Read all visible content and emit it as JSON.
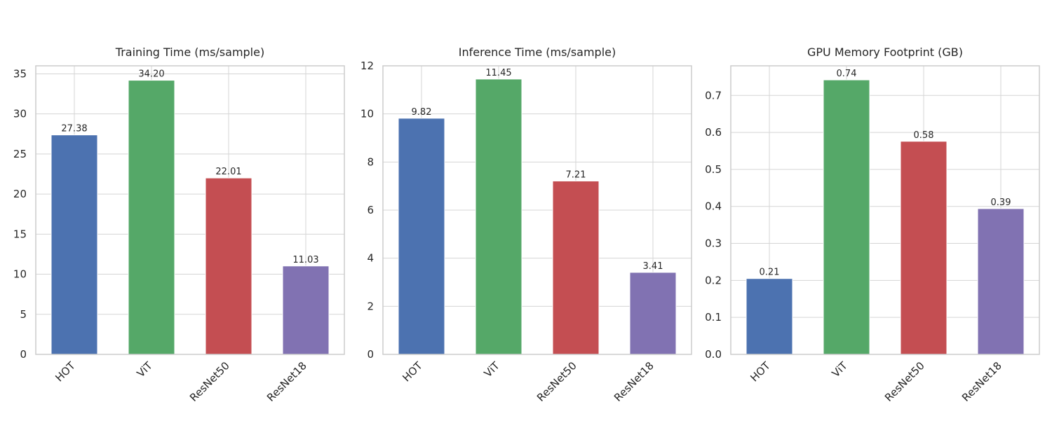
{
  "chart_data": [
    {
      "type": "bar",
      "title": "Training Time (ms/sample)",
      "xlabel": "",
      "ylabel": "",
      "categories": [
        "HOT",
        "ViT",
        "ResNet50",
        "ResNet18"
      ],
      "values": [
        27.38,
        34.2,
        22.01,
        11.03
      ],
      "value_labels": [
        "27.38",
        "34.20",
        "22.01",
        "11.03"
      ],
      "ylim": [
        0,
        36
      ],
      "yticks": [
        0,
        5,
        10,
        15,
        20,
        25,
        30,
        35
      ],
      "ytick_labels": [
        "0",
        "5",
        "10",
        "15",
        "20",
        "25",
        "30",
        "35"
      ],
      "grid": true,
      "legend": "none"
    },
    {
      "type": "bar",
      "title": "Inference Time (ms/sample)",
      "xlabel": "",
      "ylabel": "",
      "categories": [
        "HOT",
        "ViT",
        "ResNet50",
        "ResNet18"
      ],
      "values": [
        9.82,
        11.45,
        7.21,
        3.41
      ],
      "value_labels": [
        "9.82",
        "11.45",
        "7.21",
        "3.41"
      ],
      "ylim": [
        0,
        12
      ],
      "yticks": [
        0,
        2,
        4,
        6,
        8,
        10,
        12
      ],
      "ytick_labels": [
        "0",
        "2",
        "4",
        "6",
        "8",
        "10",
        "12"
      ],
      "grid": true,
      "legend": "none"
    },
    {
      "type": "bar",
      "title": "GPU Memory Footprint (GB)",
      "xlabel": "",
      "ylabel": "",
      "categories": [
        "HOT",
        "ViT",
        "ResNet50",
        "ResNet18"
      ],
      "values": [
        0.205,
        0.742,
        0.576,
        0.394
      ],
      "value_labels": [
        "0.21",
        "0.74",
        "0.58",
        "0.39"
      ],
      "ylim": [
        0,
        0.78
      ],
      "yticks": [
        0,
        0.1,
        0.2,
        0.3,
        0.4,
        0.5,
        0.6,
        0.7
      ],
      "ytick_labels": [
        "0.0",
        "0.1",
        "0.2",
        "0.3",
        "0.4",
        "0.5",
        "0.6",
        "0.7"
      ],
      "grid": true,
      "legend": "none"
    }
  ],
  "colors": {
    "bars": [
      "#4c72b0",
      "#55a868",
      "#c44e52",
      "#8172b2"
    ],
    "grid": "#d5d5d5",
    "spine": "#cccccc",
    "text": "#262626"
  }
}
